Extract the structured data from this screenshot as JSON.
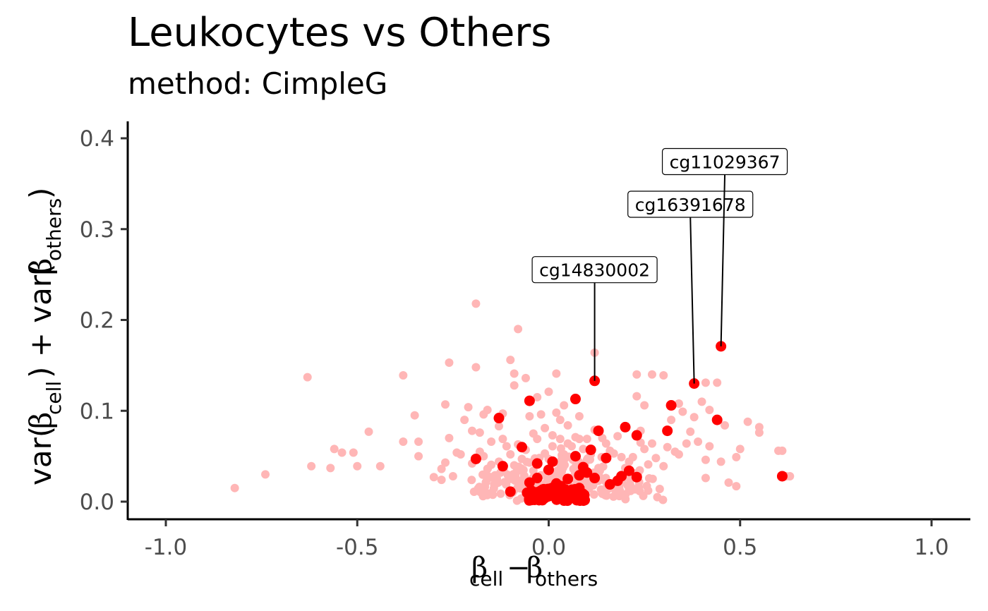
{
  "title": "Leukocytes vs Others",
  "subtitle": "method: CimpleG",
  "chart_data": {
    "type": "scatter",
    "title": "Leukocytes vs Others",
    "subtitle": "method: CimpleG",
    "xlabel": "βcell − βothers",
    "ylabel": "var(βcell) + var(βothers)",
    "xlim": [
      -1.1,
      1.1
    ],
    "ylim": [
      -0.02,
      0.42
    ],
    "x_ticks": [
      -1.0,
      -0.5,
      0.0,
      0.5,
      1.0
    ],
    "x_tick_labels": [
      "-1.0",
      "-0.5",
      "0.0",
      "0.5",
      "1.0"
    ],
    "y_ticks": [
      0.0,
      0.1,
      0.2,
      0.3,
      0.4
    ],
    "y_tick_labels": [
      "0.0",
      "0.1",
      "0.2",
      "0.3",
      "0.4"
    ],
    "grid": false,
    "colors": {
      "background_points": "#ffb6b6",
      "highlighted_points": "#ff0000"
    },
    "series": [
      {
        "values": [
          [
            -0.82,
            0.015
          ],
          [
            -0.74,
            0.03
          ],
          [
            -0.63,
            0.137
          ],
          [
            -0.62,
            0.039
          ],
          [
            -0.57,
            0.037
          ],
          [
            -0.56,
            0.058
          ],
          [
            -0.54,
            0.054
          ],
          [
            -0.51,
            0.054
          ],
          [
            -0.5,
            0.039
          ],
          [
            -0.47,
            0.077
          ],
          [
            -0.44,
            0.039
          ],
          [
            -0.38,
            0.139
          ],
          [
            -0.38,
            0.066
          ],
          [
            -0.35,
            0.095
          ],
          [
            -0.34,
            0.066
          ],
          [
            -0.34,
            0.05
          ],
          [
            -0.3,
            0.027
          ],
          [
            -0.28,
            0.036
          ],
          [
            -0.28,
            0.024
          ],
          [
            -0.27,
            0.107
          ],
          [
            -0.27,
            0.043
          ],
          [
            -0.26,
            0.153
          ],
          [
            -0.26,
            0.07
          ],
          [
            -0.25,
            0.028
          ],
          [
            -0.24,
            0.054
          ],
          [
            -0.23,
            0.052
          ],
          [
            -0.22,
            0.09
          ],
          [
            -0.21,
            0.104
          ],
          [
            -0.2,
            0.078
          ],
          [
            -0.2,
            0.042
          ],
          [
            -0.19,
            0.218
          ],
          [
            -0.19,
            0.148
          ],
          [
            -0.18,
            0.076
          ],
          [
            -0.18,
            0.055
          ],
          [
            -0.17,
            0.05
          ],
          [
            -0.17,
            0.096
          ],
          [
            -0.16,
            0.101
          ],
          [
            -0.16,
            0.036
          ],
          [
            -0.15,
            0.066
          ],
          [
            -0.14,
            0.029
          ],
          [
            -0.13,
            0.083
          ],
          [
            -0.13,
            0.044
          ],
          [
            -0.12,
            0.097
          ],
          [
            -0.12,
            0.069
          ],
          [
            -0.11,
            0.061
          ],
          [
            -0.1,
            0.156
          ],
          [
            -0.1,
            0.052
          ],
          [
            -0.1,
            0.025
          ],
          [
            -0.09,
            0.141
          ],
          [
            -0.09,
            0.128
          ],
          [
            -0.09,
            0.04
          ],
          [
            -0.08,
            0.19
          ],
          [
            -0.08,
            0.063
          ],
          [
            -0.07,
            0.047
          ],
          [
            -0.07,
            0.034
          ],
          [
            -0.06,
            0.025
          ],
          [
            -0.06,
            0.136
          ],
          [
            -0.06,
            0.057
          ],
          [
            -0.05,
            0.094
          ],
          [
            -0.05,
            0.043
          ],
          [
            -0.04,
            0.034
          ],
          [
            -0.04,
            0.075
          ],
          [
            -0.03,
            0.115
          ],
          [
            -0.03,
            0.069
          ],
          [
            -0.03,
            0.043
          ],
          [
            -0.02,
            0.096
          ],
          [
            -0.02,
            0.029
          ],
          [
            -0.01,
            0.081
          ],
          [
            -0.01,
            0.053
          ],
          [
            0.0,
            0.121
          ],
          [
            0.0,
            0.047
          ],
          [
            0.01,
            0.073
          ],
          [
            0.01,
            0.061
          ],
          [
            0.02,
            0.141
          ],
          [
            0.02,
            0.098
          ],
          [
            0.02,
            0.031
          ],
          [
            0.03,
            0.09
          ],
          [
            0.03,
            0.069
          ],
          [
            0.04,
            0.106
          ],
          [
            0.04,
            0.052
          ],
          [
            0.05,
            0.084
          ],
          [
            0.05,
            0.064
          ],
          [
            0.06,
            0.061
          ],
          [
            0.07,
            0.071
          ],
          [
            0.08,
            0.094
          ],
          [
            0.08,
            0.069
          ],
          [
            0.09,
            0.058
          ],
          [
            0.1,
            0.069
          ],
          [
            0.1,
            0.046
          ],
          [
            0.11,
            0.052
          ],
          [
            0.12,
            0.164
          ],
          [
            0.12,
            0.079
          ],
          [
            0.13,
            0.037
          ],
          [
            0.14,
            0.07
          ],
          [
            0.15,
            0.064
          ],
          [
            0.16,
            0.056
          ],
          [
            0.17,
            0.053
          ],
          [
            0.18,
            0.072
          ],
          [
            0.19,
            0.049
          ],
          [
            0.2,
            0.037
          ],
          [
            0.21,
            0.044
          ],
          [
            0.22,
            0.049
          ],
          [
            0.23,
            0.14
          ],
          [
            0.23,
            0.116
          ],
          [
            0.24,
            0.078
          ],
          [
            0.24,
            0.065
          ],
          [
            0.25,
            0.106
          ],
          [
            0.25,
            0.058
          ],
          [
            0.26,
            0.041
          ],
          [
            0.27,
            0.14
          ],
          [
            0.27,
            0.064
          ],
          [
            0.28,
            0.048
          ],
          [
            0.29,
            0.014
          ],
          [
            0.3,
            0.139
          ],
          [
            0.3,
            0.039
          ],
          [
            0.31,
            0.06
          ],
          [
            0.32,
            0.09
          ],
          [
            0.33,
            0.055
          ],
          [
            0.34,
            0.108
          ],
          [
            0.34,
            0.052
          ],
          [
            0.35,
            0.099
          ],
          [
            0.36,
            0.064
          ],
          [
            0.37,
            0.077
          ],
          [
            0.38,
            0.093
          ],
          [
            0.39,
            0.066
          ],
          [
            0.4,
            0.11
          ],
          [
            0.41,
            0.026
          ],
          [
            0.41,
            0.131
          ],
          [
            0.41,
            0.046
          ],
          [
            0.42,
            0.101
          ],
          [
            0.42,
            0.061
          ],
          [
            0.44,
            0.131
          ],
          [
            0.45,
            0.044
          ],
          [
            0.46,
            0.084
          ],
          [
            0.47,
            0.021
          ],
          [
            0.49,
            0.049
          ],
          [
            0.49,
            0.017
          ],
          [
            0.5,
            0.058
          ],
          [
            0.52,
            0.088
          ],
          [
            0.55,
            0.076
          ],
          [
            0.55,
            0.082
          ],
          [
            0.6,
            0.056
          ],
          [
            0.61,
            0.056
          ],
          [
            0.63,
            0.028
          ],
          [
            0.62,
            0.028
          ]
        ]
      },
      {
        "values": [
          [
            -0.19,
            0.047
          ],
          [
            -0.13,
            0.092
          ],
          [
            -0.12,
            0.039
          ],
          [
            -0.1,
            0.011
          ],
          [
            -0.07,
            0.06
          ],
          [
            -0.05,
            0.111
          ],
          [
            -0.03,
            0.042
          ],
          [
            -0.05,
            0.021
          ],
          [
            -0.05,
            0.008
          ],
          [
            -0.03,
            0.026
          ],
          [
            -0.02,
            0.012
          ],
          [
            -0.01,
            0.004
          ],
          [
            0.0,
            0.035
          ],
          [
            0.01,
            0.044
          ],
          [
            0.02,
            0.02
          ],
          [
            0.03,
            0.008
          ],
          [
            0.04,
            0.002
          ],
          [
            0.05,
            0.025
          ],
          [
            0.06,
            0.011
          ],
          [
            0.07,
            0.113
          ],
          [
            0.07,
            0.05
          ],
          [
            0.08,
            0.029
          ],
          [
            0.08,
            0.015
          ],
          [
            0.09,
            0.038
          ],
          [
            0.1,
            0.032
          ],
          [
            0.11,
            0.057
          ],
          [
            0.12,
            0.133
          ],
          [
            0.12,
            0.026
          ],
          [
            0.13,
            0.078
          ],
          [
            0.15,
            0.048
          ],
          [
            0.16,
            0.019
          ],
          [
            0.18,
            0.023
          ],
          [
            0.19,
            0.028
          ],
          [
            0.2,
            0.082
          ],
          [
            0.21,
            0.034
          ],
          [
            0.23,
            0.027
          ],
          [
            0.23,
            0.073
          ],
          [
            0.31,
            0.078
          ],
          [
            0.32,
            0.106
          ],
          [
            0.38,
            0.13
          ],
          [
            0.44,
            0.09
          ],
          [
            0.45,
            0.171
          ],
          [
            0.61,
            0.028
          ]
        ]
      }
    ],
    "dense_cluster": {
      "x_center": 0.04,
      "y_center": 0.012
    },
    "annotations": [
      {
        "label": "cg14830002",
        "x": 0.12,
        "y": 0.133,
        "label_x": 0.12,
        "label_y": 0.255
      },
      {
        "label": "cg16391678",
        "x": 0.38,
        "y": 0.13,
        "label_x": 0.37,
        "label_y": 0.327
      },
      {
        "label": "cg11029367",
        "x": 0.45,
        "y": 0.171,
        "label_x": 0.46,
        "label_y": 0.374
      }
    ]
  }
}
